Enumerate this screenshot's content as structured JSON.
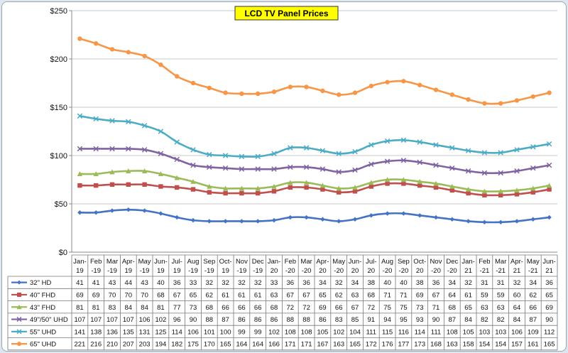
{
  "chart_data": {
    "type": "line",
    "title": "LCD TV Panel Prices",
    "ylim": [
      0,
      250
    ],
    "yticks": [
      "$0",
      "$50",
      "$100",
      "$150",
      "$200",
      "$250"
    ],
    "categories": [
      "Jan-19",
      "Feb-19",
      "Mar-19",
      "Apr-19",
      "May-19",
      "Jun-19",
      "Jul-19",
      "Aug-19",
      "Sep-19",
      "Oct-19",
      "Nov-19",
      "Dec-19",
      "Jan-20",
      "Feb-20",
      "Mar-20",
      "Apr-20",
      "May-20",
      "Jun-20",
      "Jul-20",
      "Aug-20",
      "Sep-20",
      "Oct-20",
      "Nov-20",
      "Dec-20",
      "Jan-21",
      "Feb-21",
      "Mar-21",
      "Apr-21",
      "May-21",
      "Jun-21"
    ],
    "category_lines": [
      [
        "Jan-",
        "19"
      ],
      [
        "Feb",
        "-19"
      ],
      [
        "Mar",
        "-19"
      ],
      [
        "Apr-",
        "19"
      ],
      [
        "May",
        "-19"
      ],
      [
        "Jun-",
        "19"
      ],
      [
        "Jul-",
        "19"
      ],
      [
        "Aug",
        "-19"
      ],
      [
        "Sep",
        "-19"
      ],
      [
        "Oct-",
        "19"
      ],
      [
        "Nov",
        "-19"
      ],
      [
        "Dec",
        "-19"
      ],
      [
        "Jan-",
        "20"
      ],
      [
        "Feb",
        "-20"
      ],
      [
        "Mar",
        "-20"
      ],
      [
        "Apr-",
        "20"
      ],
      [
        "May",
        "-20"
      ],
      [
        "Jun-",
        "20"
      ],
      [
        "Jul-",
        "20"
      ],
      [
        "Aug",
        "-20"
      ],
      [
        "Sep",
        "-20"
      ],
      [
        "Oct-",
        "20"
      ],
      [
        "Nov",
        "-20"
      ],
      [
        "Dec",
        "-20"
      ],
      [
        "Jan-",
        "21"
      ],
      [
        "Feb",
        "-21"
      ],
      [
        "Mar",
        "-21"
      ],
      [
        "Apr-",
        "21"
      ],
      [
        "May",
        "-21"
      ],
      [
        "Jun-",
        "21"
      ]
    ],
    "grid": true,
    "legend": "data-table",
    "series": [
      {
        "name": "32\" HD",
        "color": "#4472c4",
        "marker": "diamond",
        "values": [
          41,
          41,
          43,
          44,
          43,
          40,
          36,
          33,
          32,
          32,
          32,
          32,
          33,
          36,
          36,
          34,
          32,
          34,
          38,
          40,
          40,
          38,
          36,
          34,
          32,
          31,
          31,
          32,
          34,
          36
        ]
      },
      {
        "name": "40\" FHD",
        "color": "#c0504d",
        "marker": "square",
        "values": [
          69,
          69,
          70,
          70,
          70,
          68,
          67,
          65,
          62,
          61,
          61,
          61,
          63,
          67,
          67,
          65,
          62,
          63,
          68,
          71,
          71,
          69,
          67,
          64,
          61,
          59,
          59,
          60,
          62,
          65
        ]
      },
      {
        "name": "43\" FHD",
        "color": "#9bbb59",
        "marker": "triangle",
        "values": [
          81,
          81,
          83,
          84,
          84,
          81,
          77,
          73,
          68,
          66,
          66,
          66,
          68,
          72,
          72,
          69,
          66,
          67,
          72,
          75,
          75,
          73,
          71,
          68,
          65,
          63,
          63,
          64,
          66,
          69
        ]
      },
      {
        "name": "49\"/50\" UHD",
        "color": "#8064a2",
        "marker": "x",
        "values": [
          107,
          107,
          107,
          107,
          106,
          102,
          96,
          90,
          88,
          87,
          86,
          86,
          86,
          88,
          88,
          86,
          83,
          85,
          91,
          94,
          95,
          93,
          90,
          87,
          84,
          82,
          82,
          84,
          87,
          90
        ]
      },
      {
        "name": "55\" UHD",
        "color": "#4bacc6",
        "marker": "x",
        "values": [
          141,
          138,
          136,
          135,
          131,
          125,
          114,
          106,
          101,
          100,
          99,
          99,
          102,
          108,
          108,
          105,
          102,
          104,
          111,
          115,
          116,
          114,
          111,
          108,
          105,
          103,
          103,
          106,
          109,
          112
        ]
      },
      {
        "name": "65\" UHD",
        "color": "#f79646",
        "marker": "circle",
        "values": [
          221,
          216,
          210,
          207,
          203,
          194,
          182,
          175,
          170,
          165,
          164,
          164,
          166,
          171,
          171,
          167,
          163,
          165,
          172,
          176,
          177,
          173,
          168,
          163,
          158,
          154,
          154,
          157,
          161,
          165
        ]
      }
    ]
  }
}
